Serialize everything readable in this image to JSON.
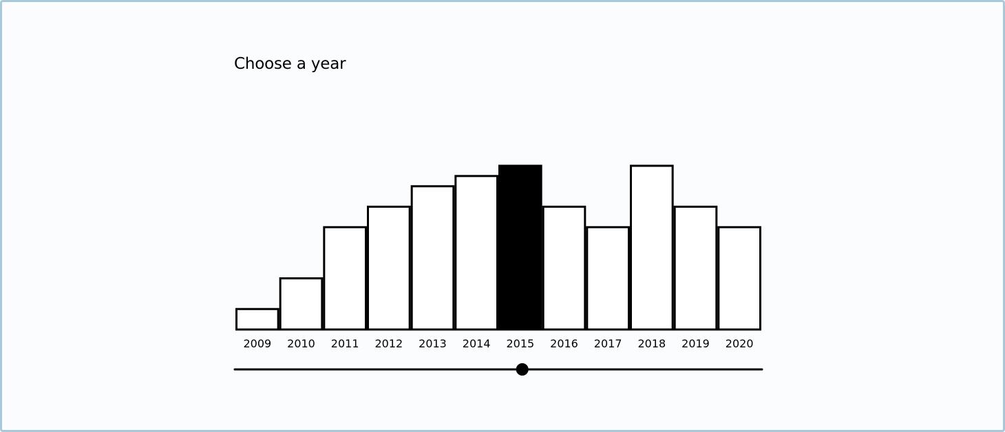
{
  "title": "Choose a year",
  "selected_year": "2015",
  "colors": {
    "border": "#a9c8da",
    "background": "#fbfcfe",
    "bar_stroke": "#000000",
    "bar_fill": "#ffffff",
    "selected_fill": "#000000"
  },
  "chart_data": {
    "type": "bar",
    "categories": [
      "2009",
      "2010",
      "2011",
      "2012",
      "2013",
      "2014",
      "2015",
      "2016",
      "2017",
      "2018",
      "2019",
      "2020"
    ],
    "values": [
      1,
      2.5,
      5,
      6,
      7,
      7.5,
      8,
      6,
      5,
      8,
      6,
      5
    ],
    "ylim": [
      0,
      8
    ],
    "grid": false,
    "selected": "2015"
  },
  "slider": {
    "min": "2009",
    "max": "2020",
    "value": "2015"
  }
}
